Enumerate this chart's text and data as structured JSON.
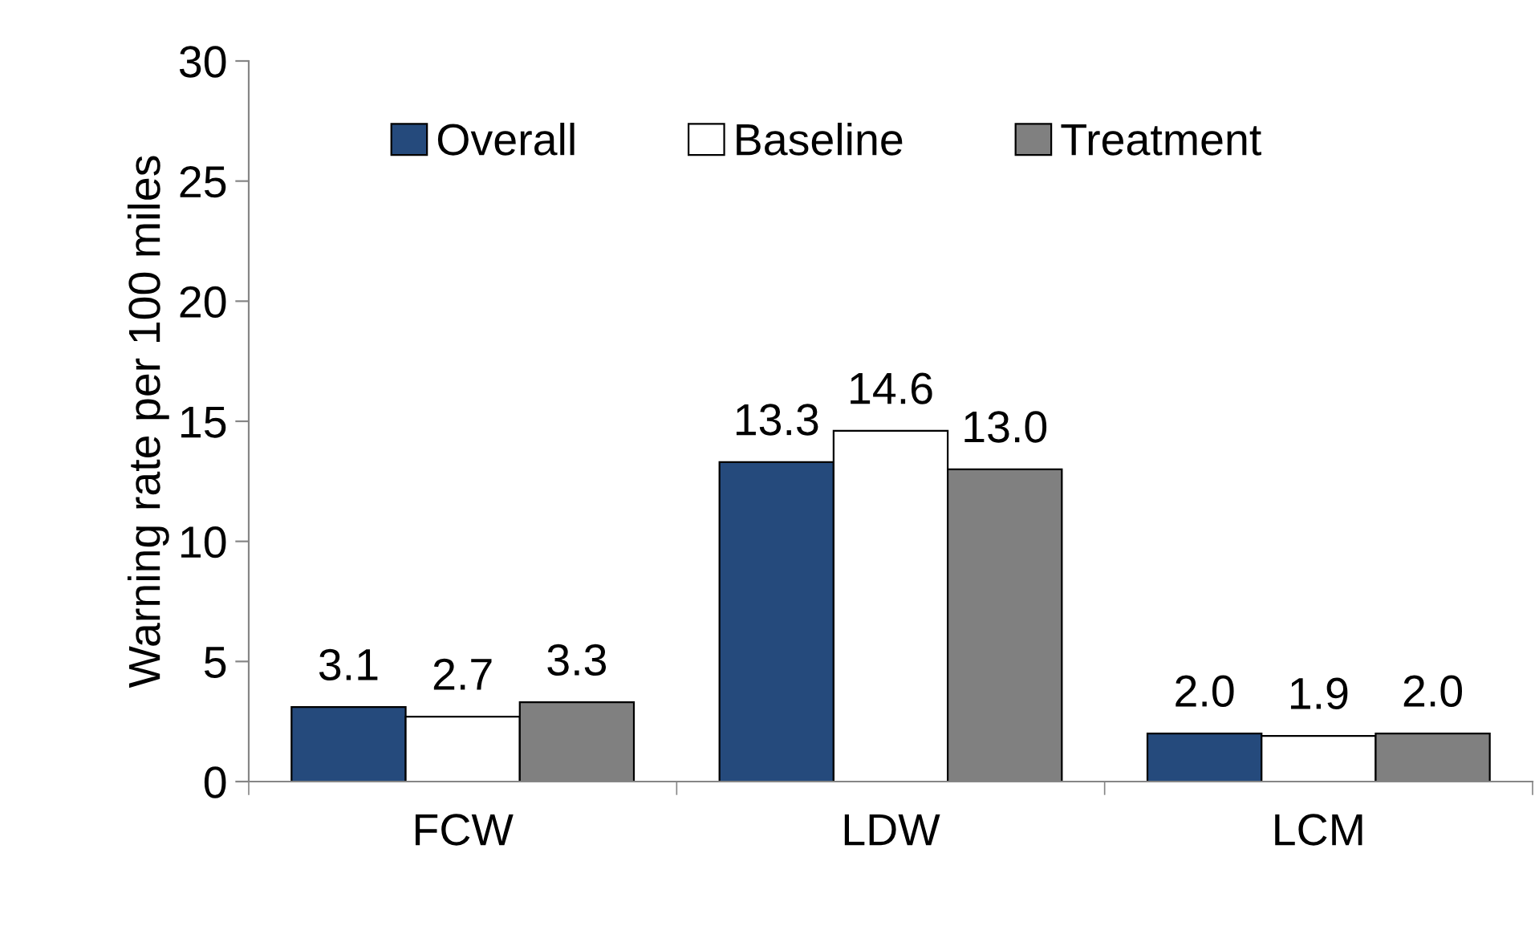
{
  "chart_data": {
    "type": "bar",
    "ylabel": "Warning rate per 100 miles",
    "categories": [
      "FCW",
      "LDW",
      "LCM"
    ],
    "series": [
      {
        "name": "Overall",
        "color": "#254a7c",
        "values": [
          3.1,
          13.3,
          2.0
        ],
        "value_labels": [
          "3.1",
          "13.3",
          "2.0"
        ]
      },
      {
        "name": "Baseline",
        "color": "#ffffff",
        "values": [
          2.7,
          14.6,
          1.9
        ],
        "value_labels": [
          "2.7",
          "14.6",
          "1.9"
        ]
      },
      {
        "name": "Treatment",
        "color": "#808080",
        "values": [
          3.3,
          13.0,
          2.0
        ],
        "value_labels": [
          "3.3",
          "13.0",
          "2.0"
        ]
      }
    ],
    "ylim": [
      0,
      30
    ],
    "yticks": [
      0,
      5,
      10,
      15,
      20,
      25,
      30
    ],
    "grid": false,
    "legend": "top"
  }
}
